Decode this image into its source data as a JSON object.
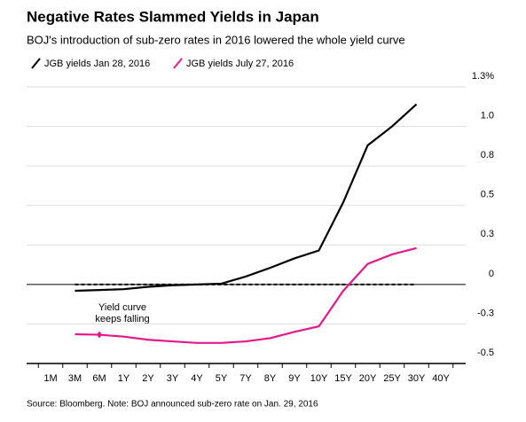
{
  "chart_data": {
    "type": "line",
    "title": "Negative Rates Slammed Yields in Japan",
    "subtitle": "BOJ's introduction of sub-zero rates in 2016 lowered the whole yield curve",
    "source": "Source: Bloomberg. Note: BOJ announced sub-zero rate on Jan. 29, 2016",
    "annotation": [
      "Yield curve",
      "keeps falling"
    ],
    "categories": [
      "1M",
      "3M",
      "6M",
      "1Y",
      "2Y",
      "3Y",
      "4Y",
      "5Y",
      "7Y",
      "8Y",
      "9Y",
      "10Y",
      "15Y",
      "20Y",
      "25Y",
      "30Y",
      "40Y"
    ],
    "series": [
      {
        "name": "JGB yields Jan 28, 2016",
        "color": "#000000",
        "values": [
          null,
          -0.04,
          -0.035,
          -0.03,
          -0.015,
          -0.005,
          0,
          0.005,
          0.05,
          0.105,
          0.165,
          0.215,
          0.52,
          0.88,
          1.0,
          1.14,
          null
        ]
      },
      {
        "name": "JGB yields July 27, 2016",
        "color": "#e6198c",
        "values": [
          null,
          -0.315,
          -0.318,
          -0.33,
          -0.35,
          -0.36,
          -0.37,
          -0.37,
          -0.36,
          -0.34,
          -0.3,
          -0.265,
          -0.04,
          0.13,
          0.19,
          0.23,
          null
        ]
      }
    ],
    "ylim": [
      -0.5,
      1.25
    ],
    "yticks": [
      {
        "value": 1.25,
        "label": "1.3%"
      },
      {
        "value": 1,
        "label": "1.0"
      },
      {
        "value": 0.75,
        "label": "0.8"
      },
      0.5,
      {
        "value": 0.25,
        "label": "0.3"
      },
      0,
      {
        "value": -0.25,
        "label": "-0.3"
      },
      -0.5
    ],
    "grid": true
  }
}
